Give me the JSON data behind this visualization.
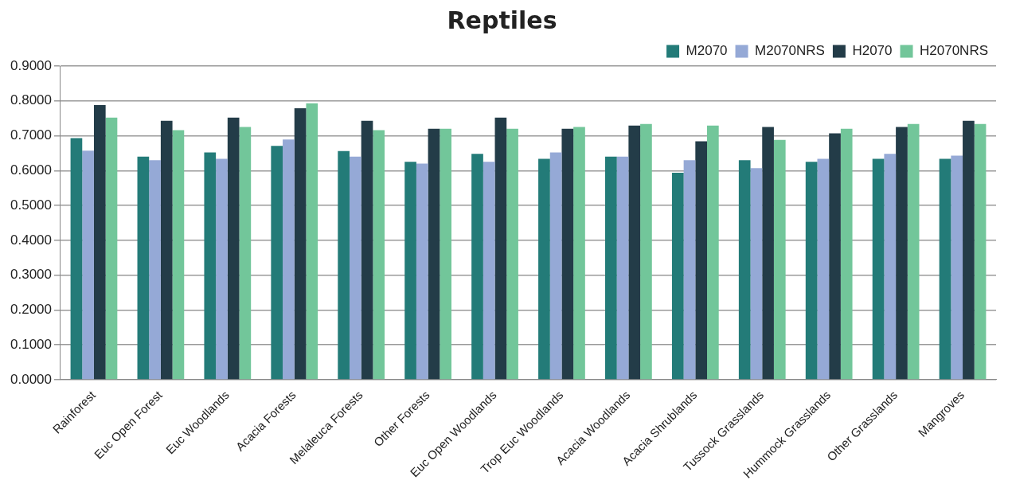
{
  "chart_data": {
    "type": "bar",
    "title": "Reptiles",
    "categories": [
      "Rainforest",
      "Euc Open Forest",
      "Euc Woodlands",
      "Acacia Forests",
      "Melaleuca Forests",
      "Other Forests",
      "Euc Open Woodlands",
      "Trop Euc Woodlands",
      "Acacia Woodlands",
      "Acacia Shrublands",
      "Tussock Grasslands",
      "Hummock Grasslands",
      "Other Grasslands",
      "Mangroves"
    ],
    "series": [
      {
        "name": "M2070",
        "color": "#237b78",
        "values": [
          0.693,
          0.64,
          0.652,
          0.671,
          0.656,
          0.625,
          0.648,
          0.634,
          0.64,
          0.594,
          0.63,
          0.625,
          0.634,
          0.634
        ]
      },
      {
        "name": "M2070NRS",
        "color": "#95a9d6",
        "values": [
          0.657,
          0.63,
          0.634,
          0.689,
          0.64,
          0.62,
          0.625,
          0.652,
          0.64,
          0.63,
          0.607,
          0.634,
          0.648,
          0.643
        ]
      },
      {
        "name": "H2070",
        "color": "#233c48",
        "values": [
          0.788,
          0.743,
          0.752,
          0.779,
          0.743,
          0.72,
          0.752,
          0.72,
          0.729,
          0.684,
          0.725,
          0.707,
          0.725,
          0.743
        ]
      },
      {
        "name": "H2070NRS",
        "color": "#72c69a",
        "values": [
          0.752,
          0.716,
          0.725,
          0.793,
          0.716,
          0.72,
          0.72,
          0.725,
          0.734,
          0.729,
          0.688,
          0.72,
          0.734,
          0.734
        ]
      }
    ],
    "ylim": [
      0,
      0.9
    ],
    "yticks": [
      {
        "value": 0,
        "label": "0.0000"
      },
      {
        "value": 0.1,
        "label": "0.1000"
      },
      {
        "value": 0.2,
        "label": "0.2000"
      },
      {
        "value": 0.3,
        "label": "0.3000"
      },
      {
        "value": 0.4,
        "label": "0.4000"
      },
      {
        "value": 0.5,
        "label": "0.5000"
      },
      {
        "value": 0.6,
        "label": "0.6000"
      },
      {
        "value": 0.7,
        "label": "0.7000"
      },
      {
        "value": 0.8,
        "label": "0.8000"
      },
      {
        "value": 0.9,
        "label": "0.9000"
      }
    ],
    "grid": "y",
    "legend": "top right"
  }
}
